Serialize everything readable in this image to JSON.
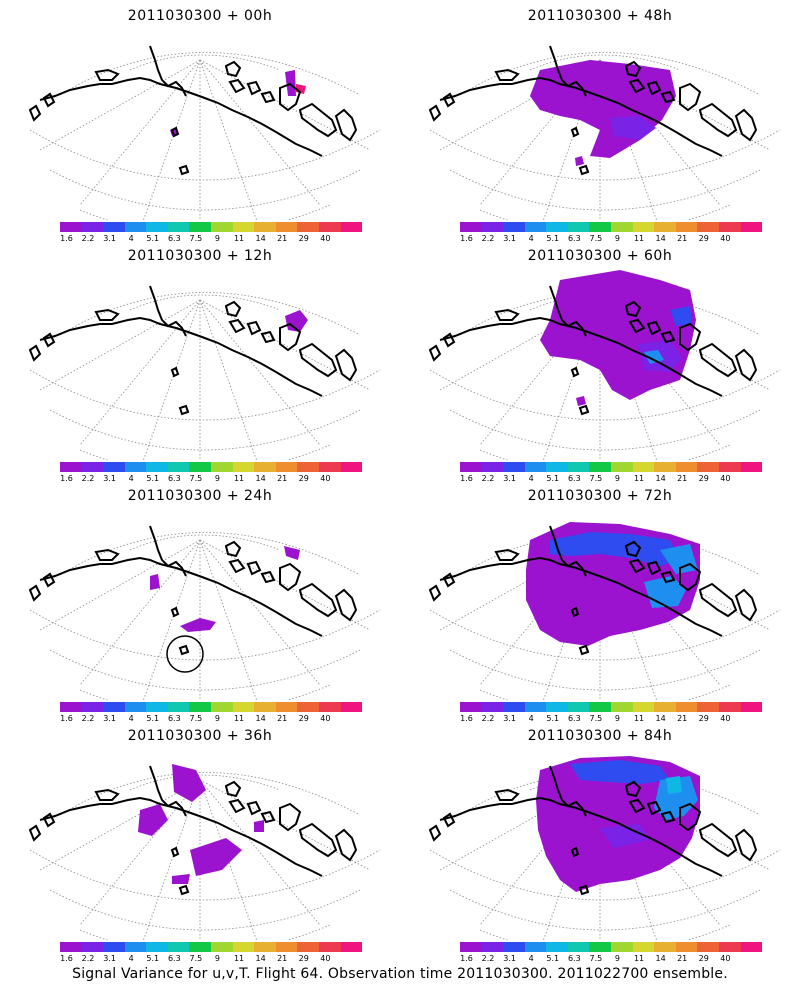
{
  "panels": [
    {
      "title": "2011030300 + 00h"
    },
    {
      "title": "2011030300 + 48h"
    },
    {
      "title": "2011030300 + 12h"
    },
    {
      "title": "2011030300 + 60h"
    },
    {
      "title": "2011030300 + 24h"
    },
    {
      "title": "2011030300 + 72h"
    },
    {
      "title": "2011030300 + 36h"
    },
    {
      "title": "2011030300 + 84h"
    }
  ],
  "colorbar": {
    "colors": [
      "#9b12cf",
      "#7a22e6",
      "#2f4cf0",
      "#1f8fef",
      "#10b6e6",
      "#10c8b0",
      "#12c846",
      "#9fd630",
      "#d6d630",
      "#e8b030",
      "#ee8e2e",
      "#ee6238",
      "#ee3a50",
      "#f0157e"
    ],
    "labels": [
      "1.6",
      "2.2",
      "3.1",
      "4",
      "5.1",
      "6.3",
      "7.5",
      "9",
      "11",
      "14",
      "21",
      "29",
      "40"
    ]
  },
  "footer": "Signal Variance for u,v,T. Flight 64. Observation time 2011030300. 2011022700 ensemble."
}
